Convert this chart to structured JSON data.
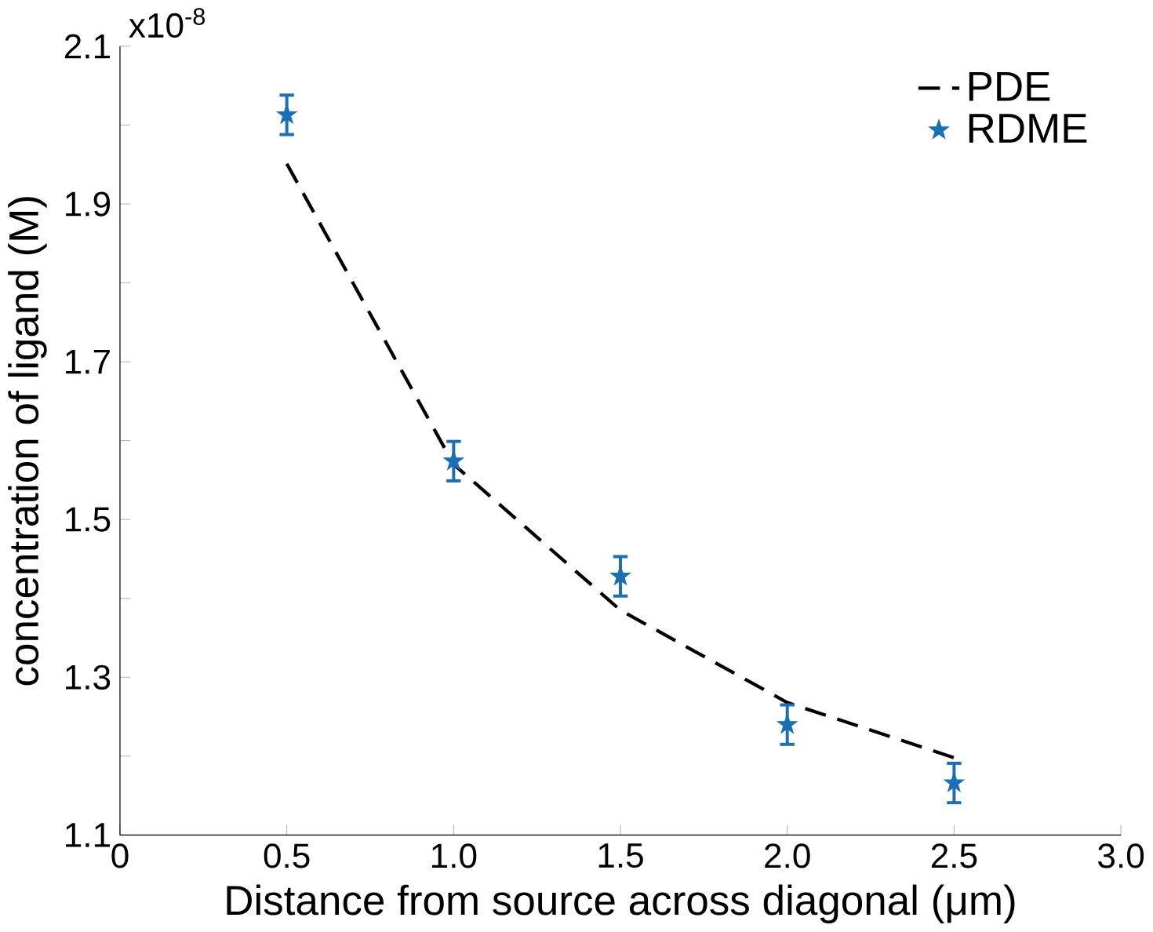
{
  "chart_data": {
    "type": "line",
    "xlabel": "Distance from source across diagonal (μm)",
    "ylabel": "concentration of ligand (M)",
    "annotations": [
      "x10$^{-8}$"
    ],
    "xlim": [
      0,
      3
    ],
    "ylim": [
      1.1,
      2.1
    ],
    "xticks": [
      0,
      {
        "value": 0.5,
        "label": "0.5"
      },
      {
        "value": 1,
        "label": "1.0"
      },
      {
        "value": 1.5,
        "label": "1.5"
      },
      {
        "value": 2,
        "label": "2.0"
      },
      {
        "value": 2.5,
        "label": "2.5"
      },
      {
        "value": 3,
        "label": "3.0"
      }
    ],
    "yticks": [
      1.1,
      {
        "value": 1.2,
        "label": null
      },
      1.3,
      {
        "value": 1.4,
        "label": null
      },
      1.5,
      {
        "value": 1.6,
        "label": null
      },
      1.7,
      {
        "value": 1.8,
        "label": null
      },
      1.9,
      {
        "value": 2.0,
        "label": null
      },
      2.1
    ],
    "legend": "top right",
    "grid": false,
    "series": [
      {
        "name": "PDE",
        "color": "#000000",
        "line_style": "dashed",
        "marker": "none",
        "x": [
          0.5,
          1.0,
          1.5,
          2.0,
          2.5
        ],
        "values": [
          1.951,
          1.57,
          1.385,
          1.268,
          1.198
        ]
      },
      {
        "name": "RDME",
        "type": "scatter",
        "color": "#1a6fb5",
        "marker": "star",
        "x": [
          0.5,
          1.0,
          1.5,
          2.0,
          2.5
        ],
        "values": [
          2.013,
          1.574,
          1.428,
          1.24,
          1.166
        ],
        "errors": [
          0.025,
          0.025,
          0.025,
          0.025,
          0.025
        ]
      }
    ]
  }
}
